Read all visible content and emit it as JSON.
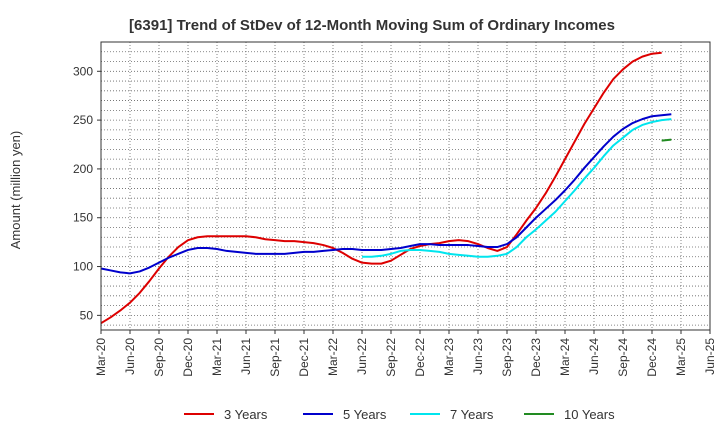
{
  "chart_data": {
    "type": "line",
    "title": "[6391]  Trend of StDev of 12-Month Moving Sum of Ordinary Incomes",
    "xlabel": "",
    "ylabel": "Amount (million yen)",
    "ylim": [
      35,
      330
    ],
    "yticks": [
      50,
      100,
      150,
      200,
      250,
      300
    ],
    "xtick_labels": [
      "Mar-20",
      "Jun-20",
      "Sep-20",
      "Dec-20",
      "Mar-21",
      "Jun-21",
      "Sep-21",
      "Dec-21",
      "Mar-22",
      "Jun-22",
      "Sep-22",
      "Dec-22",
      "Mar-23",
      "Jun-23",
      "Sep-23",
      "Dec-23",
      "Mar-24",
      "Jun-24",
      "Sep-24",
      "Dec-24",
      "Mar-25",
      "Jun-25"
    ],
    "grid": true,
    "legend_position": "bottom",
    "series": [
      {
        "name": "3 Years",
        "color": "#dd0000",
        "start_index": 0,
        "values": [
          42,
          48,
          55,
          63,
          73,
          85,
          98,
          110,
          120,
          127,
          130,
          131,
          131,
          131,
          131,
          131,
          130,
          128,
          127,
          126,
          126,
          125,
          124,
          122,
          119,
          114,
          108,
          104,
          103,
          103,
          106,
          112,
          118,
          121,
          123,
          124,
          126,
          127,
          126,
          123,
          119,
          116,
          120,
          133,
          147,
          160,
          175,
          192,
          210,
          228,
          246,
          262,
          278,
          292,
          302,
          310,
          315,
          318,
          319
        ],
        "x_step_months": 1
      },
      {
        "name": "5 Years",
        "color": "#0000cc",
        "start_index": 0,
        "values": [
          98,
          96,
          94,
          93,
          95,
          99,
          104,
          109,
          113,
          117,
          119,
          119,
          118,
          116,
          115,
          114,
          113,
          113,
          113,
          113,
          114,
          115,
          115,
          116,
          117,
          118,
          118,
          117,
          117,
          117,
          118,
          119,
          121,
          123,
          123,
          122,
          122,
          122,
          122,
          121,
          120,
          120,
          123,
          130,
          140,
          150,
          159,
          168,
          178,
          189,
          201,
          212,
          223,
          233,
          241,
          247,
          251,
          254,
          255,
          256
        ],
        "x_step_months": 1
      },
      {
        "name": "7 Years",
        "color": "#00e5ee",
        "start_index": 27,
        "values": [
          110,
          110,
          111,
          113,
          116,
          117,
          117,
          116,
          115,
          113,
          112,
          111,
          110,
          110,
          111,
          113,
          120,
          130,
          138,
          147,
          156,
          167,
          178,
          190,
          201,
          213,
          224,
          232,
          240,
          245,
          248,
          250,
          251
        ],
        "x_step_months": 1
      },
      {
        "name": "10 Years",
        "color": "#228b22",
        "start_index": 58,
        "values": [
          229,
          230
        ],
        "x_step_months": 1
      }
    ]
  }
}
